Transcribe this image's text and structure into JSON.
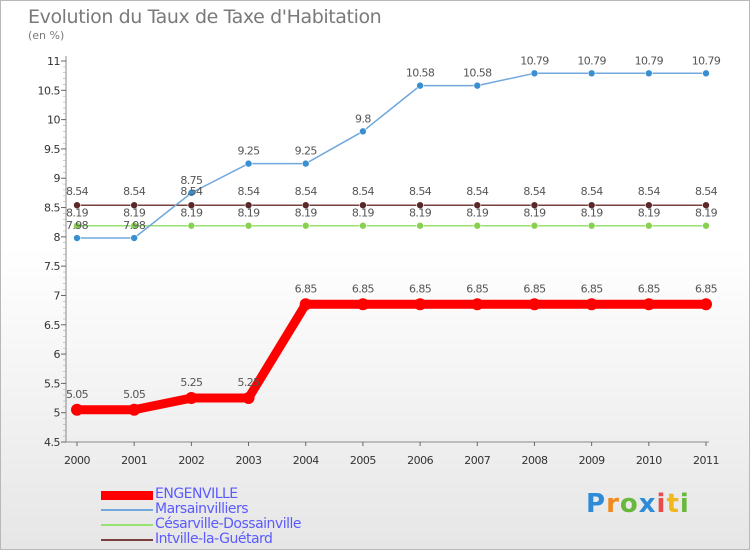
{
  "header": {
    "title": "Evolution du Taux de Taxe d'Habitation",
    "units": "(en %)"
  },
  "logo": {
    "text": "Proxiti"
  },
  "chart_data": {
    "type": "line",
    "title": "Evolution du Taux de Taxe d'Habitation",
    "ylabel": "(en %)",
    "xlabel": "",
    "x": [
      "2000",
      "2001",
      "2002",
      "2003",
      "2004",
      "2005",
      "2006",
      "2007",
      "2008",
      "2009",
      "2010",
      "2011"
    ],
    "ylim": [
      4.5,
      11
    ],
    "yticks": [
      4.5,
      5,
      5.5,
      6,
      6.5,
      7,
      7.5,
      8,
      8.5,
      9,
      9.5,
      10,
      10.5,
      11
    ],
    "ytick_labels": [
      "4.5",
      "5",
      "5.5",
      "6",
      "6.5",
      "7",
      "7.5",
      "8",
      "8.5",
      "9",
      "9.5",
      "10",
      "10.5",
      "11"
    ],
    "grid": false,
    "legend_position": "bottom-left",
    "series": [
      {
        "name": "ENGENVILLE",
        "values": [
          5.05,
          5.05,
          5.25,
          5.25,
          6.85,
          6.85,
          6.85,
          6.85,
          6.85,
          6.85,
          6.85,
          6.85
        ],
        "labels": [
          "5.05",
          "5.05",
          "5.25",
          "5.25",
          "6.85",
          "6.85",
          "6.85",
          "6.85",
          "6.85",
          "6.85",
          "6.85",
          "6.85"
        ],
        "color": "#ff0000"
      },
      {
        "name": "Marsainvilliers",
        "values": [
          7.98,
          7.98,
          8.75,
          9.25,
          9.25,
          9.8,
          10.58,
          10.58,
          10.79,
          10.79,
          10.79,
          10.79
        ],
        "labels": [
          "7.98",
          "7.98",
          "8.75",
          "9.25",
          "9.25",
          "9.8",
          "10.58",
          "10.58",
          "10.79",
          "10.79",
          "10.79",
          "10.79"
        ],
        "color": "#70a8dc"
      },
      {
        "name": "Césarville-Dossainville",
        "values": [
          8.19,
          8.19,
          8.19,
          8.19,
          8.19,
          8.19,
          8.19,
          8.19,
          8.19,
          8.19,
          8.19,
          8.19
        ],
        "labels": [
          "8.19",
          "8.19",
          "8.19",
          "8.19",
          "8.19",
          "8.19",
          "8.19",
          "8.19",
          "8.19",
          "8.19",
          "8.19",
          "8.19"
        ],
        "color": "#98e070"
      },
      {
        "name": "Intville-la-Guétard",
        "values": [
          8.54,
          8.54,
          8.54,
          8.54,
          8.54,
          8.54,
          8.54,
          8.54,
          8.54,
          8.54,
          8.54,
          8.54
        ],
        "labels": [
          "8.54",
          "8.54",
          "8.54",
          "8.54",
          "8.54",
          "8.54",
          "8.54",
          "8.54",
          "8.54",
          "8.54",
          "8.54",
          "8.54"
        ],
        "color": "#7a4040"
      }
    ]
  }
}
